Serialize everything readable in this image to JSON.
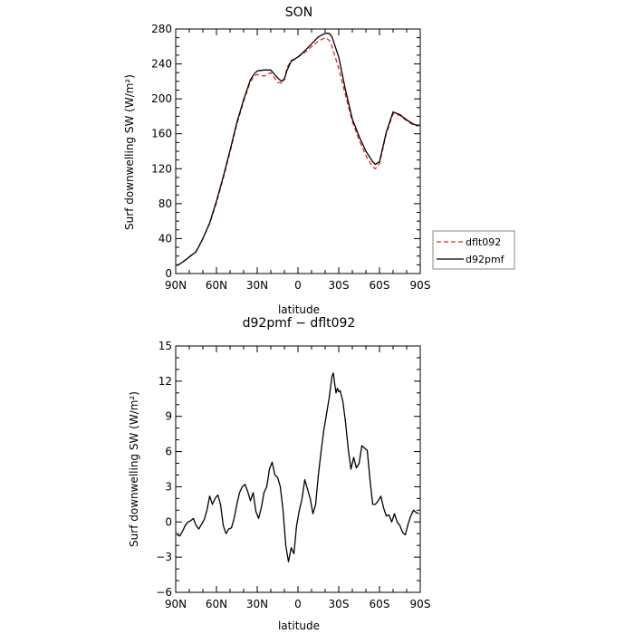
{
  "chart_data": [
    {
      "type": "line",
      "title": "SON",
      "xlabel": "latitude",
      "ylabel": "Surf downwelling SW (W/m²)",
      "xlim": [
        90,
        -90
      ],
      "ylim": [
        0,
        280
      ],
      "x_ticks": [
        90,
        60,
        30,
        0,
        -30,
        -60,
        -90
      ],
      "x_tick_labels": [
        "90N",
        "60N",
        "30N",
        "0",
        "30S",
        "60S",
        "90S"
      ],
      "y_ticks": [
        0,
        40,
        80,
        120,
        160,
        200,
        240,
        280
      ],
      "y_tick_labels": [
        "0",
        "40",
        "80",
        "120",
        "160",
        "200",
        "240",
        "280"
      ],
      "legend_position": "right",
      "series": [
        {
          "name": "dflt092",
          "color": "#e8241c",
          "dash": "dashed",
          "x": [
            89,
            85,
            80,
            75,
            70,
            65,
            60,
            55,
            50,
            45,
            40,
            35,
            32,
            30,
            25,
            20,
            15,
            12,
            10,
            8,
            5,
            2,
            0,
            -5,
            -10,
            -15,
            -20,
            -23,
            -25,
            -30,
            -35,
            -40,
            -45,
            -50,
            -55,
            -57,
            -60,
            -65,
            -70,
            -75,
            -80,
            -85,
            -89
          ],
          "y": [
            9,
            13,
            19,
            25,
            40,
            57,
            81,
            109,
            139,
            171,
            197,
            220,
            226,
            228,
            226,
            230,
            219,
            218,
            222,
            236,
            244,
            246,
            248,
            253,
            260,
            266,
            270,
            267,
            260,
            235,
            204,
            174,
            153,
            135,
            122,
            120,
            126,
            160,
            183,
            181,
            175,
            170,
            169
          ]
        },
        {
          "name": "d92pmf",
          "color": "#000000",
          "dash": "solid",
          "x": [
            89,
            85,
            80,
            75,
            70,
            65,
            60,
            55,
            50,
            45,
            40,
            35,
            32,
            30,
            25,
            20,
            15,
            12,
            10,
            8,
            5,
            2,
            0,
            -5,
            -10,
            -15,
            -20,
            -23,
            -25,
            -30,
            -35,
            -40,
            -45,
            -50,
            -55,
            -57,
            -60,
            -65,
            -70,
            -75,
            -80,
            -85,
            -89
          ],
          "y": [
            9,
            13,
            19,
            25,
            40,
            58,
            83,
            111,
            141,
            173,
            199,
            222,
            229,
            232,
            233,
            233,
            224,
            220,
            223,
            233,
            243,
            246,
            248,
            255,
            263,
            271,
            275,
            275,
            271,
            248,
            210,
            177,
            157,
            140,
            128,
            125,
            128,
            162,
            185,
            182,
            176,
            171,
            169
          ]
        }
      ]
    },
    {
      "type": "line",
      "title": "d92pmf − dflt092",
      "xlabel": "latitude",
      "ylabel": "Surf downwelling SW (W/m²)",
      "xlim": [
        90,
        -90
      ],
      "ylim": [
        -6,
        15
      ],
      "x_ticks": [
        90,
        60,
        30,
        0,
        -30,
        -60,
        -90
      ],
      "x_tick_labels": [
        "90N",
        "60N",
        "30N",
        "0",
        "30S",
        "60S",
        "90S"
      ],
      "y_ticks": [
        -6,
        -3,
        0,
        3,
        6,
        9,
        12,
        15
      ],
      "y_tick_labels": [
        "−6",
        "−3",
        "0",
        "3",
        "6",
        "9",
        "12",
        "15"
      ],
      "series": [
        {
          "name": "",
          "color": "#000000",
          "dash": "solid",
          "x": [
            89,
            87,
            85,
            83,
            81,
            79,
            77,
            75,
            73,
            71,
            69,
            67,
            65,
            63,
            61,
            59,
            57,
            55,
            53,
            51,
            49,
            47,
            45,
            43,
            41,
            39,
            37,
            35,
            33,
            31,
            29,
            27,
            25,
            23,
            21,
            19,
            17,
            15,
            13,
            11,
            9,
            7,
            5,
            3,
            1,
            -1,
            -3,
            -5,
            -7,
            -9,
            -11,
            -13,
            -15,
            -17,
            -19,
            -21,
            -23,
            -25,
            -26,
            -27,
            -28,
            -29,
            -30,
            -31,
            -33,
            -35,
            -37,
            -39,
            -41,
            -43,
            -45,
            -47,
            -49,
            -51,
            -53,
            -55,
            -57,
            -59,
            -61,
            -63,
            -65,
            -67,
            -69,
            -71,
            -73,
            -75,
            -77,
            -79,
            -81,
            -83,
            -85,
            -87,
            -89
          ],
          "y": [
            -1.1,
            -1.2,
            -0.8,
            -0.3,
            0.0,
            0.1,
            0.3,
            -0.3,
            -0.6,
            -0.2,
            0.2,
            1.0,
            2.2,
            1.5,
            2.0,
            2.3,
            1.5,
            -0.3,
            -1.0,
            -0.6,
            -0.5,
            0.3,
            1.5,
            2.5,
            3.0,
            3.2,
            2.6,
            1.8,
            2.5,
            0.9,
            0.3,
            1.2,
            2.5,
            3.0,
            4.5,
            5.1,
            4.0,
            3.8,
            3.0,
            1.0,
            -2.0,
            -3.4,
            -2.2,
            -2.7,
            -0.3,
            1.0,
            2.0,
            3.6,
            2.8,
            2.0,
            0.7,
            1.5,
            4.0,
            6.0,
            7.8,
            9.2,
            10.6,
            12.4,
            12.7,
            11.8,
            11.0,
            11.4,
            11.1,
            11.2,
            10.3,
            8.5,
            6.2,
            4.5,
            5.5,
            4.6,
            5.0,
            6.5,
            6.3,
            6.1,
            3.6,
            1.5,
            1.5,
            1.8,
            2.2,
            1.2,
            0.5,
            0.6,
            0.0,
            0.7,
            0.0,
            -0.3,
            -0.9,
            -1.1,
            -0.2,
            0.5,
            1.0,
            0.8,
            0.7
          ]
        }
      ]
    }
  ]
}
